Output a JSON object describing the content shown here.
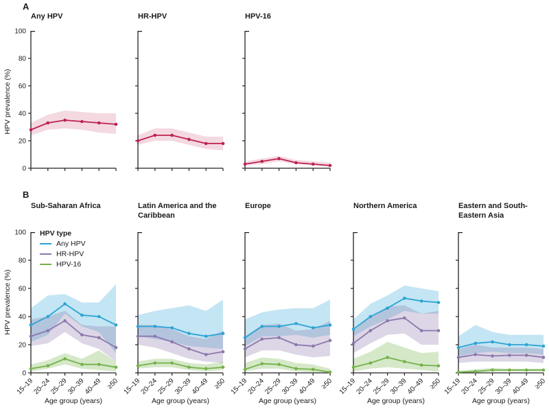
{
  "figure": {
    "panel_a_label": "A",
    "panel_b_label": "B",
    "y_axis_label": "HPV prevalence (%)",
    "x_axis_label": "Age group (years)",
    "legend_title": "HPV type"
  },
  "colors": {
    "pooled_line": "#BE2050",
    "pooled_band": "rgba(190,32,80,0.17)",
    "any_hpv_line": "#2BA3D4",
    "any_hpv_band": "rgba(43,163,212,0.28)",
    "hr_hpv_line": "#8C77AC",
    "hr_hpv_band": "rgba(140,119,172,0.30)",
    "hpv16_line": "#73B249",
    "hpv16_band": "rgba(115,178,73,0.30)",
    "axis": "#231f20"
  },
  "chart_data": [
    {
      "panel": "A",
      "type": "line",
      "categories": [
        "15–19",
        "20–24",
        "25–29",
        "30–39",
        "40–49",
        "≥50"
      ],
      "x_tick_labels_shown": false,
      "xlabel": "",
      "ylabel": "HPV prevalence (%)",
      "ylim": [
        0,
        100
      ],
      "yticks": [
        0,
        20,
        40,
        60,
        80,
        100
      ],
      "grid": false,
      "subplots": [
        {
          "title": "Any HPV",
          "series": [
            {
              "name": "Any HPV pooled",
              "color_key": "pooled",
              "values": [
                28,
                33,
                35,
                34,
                33,
                32
              ],
              "ci_lower": [
                24,
                28,
                29,
                28,
                26,
                25
              ],
              "ci_upper": [
                33,
                39,
                42,
                41,
                40,
                40
              ]
            }
          ]
        },
        {
          "title": "HR-HPV",
          "series": [
            {
              "name": "HR-HPV pooled",
              "color_key": "pooled",
              "values": [
                20,
                24,
                24,
                21,
                18,
                18
              ],
              "ci_lower": [
                17,
                20,
                20,
                17,
                14,
                13
              ],
              "ci_upper": [
                24,
                29,
                29,
                26,
                23,
                23
              ]
            }
          ]
        },
        {
          "title": "HPV-16",
          "series": [
            {
              "name": "HPV-16 pooled",
              "color_key": "pooled",
              "values": [
                3,
                5,
                7,
                4,
                3,
                2
              ],
              "ci_lower": [
                2,
                3,
                5,
                3,
                2,
                1
              ],
              "ci_upper": [
                5,
                7,
                9,
                6,
                5,
                4
              ]
            }
          ]
        }
      ]
    },
    {
      "panel": "B",
      "type": "line",
      "categories": [
        "15–19",
        "20–24",
        "25–29",
        "30–39",
        "40–49",
        "≥50"
      ],
      "x_tick_labels_shown": true,
      "xlabel": "Age group (years)",
      "ylabel": "HPV prevalence (%)",
      "ylim": [
        0,
        100
      ],
      "yticks": [
        0,
        20,
        40,
        60,
        80,
        100
      ],
      "grid": false,
      "legend": {
        "title": "HPV type",
        "position": "top-left-first-subplot",
        "entries": [
          {
            "label": "Any HPV",
            "color_key": "any_hpv"
          },
          {
            "label": "HR-HPV",
            "color_key": "hr_hpv"
          },
          {
            "label": "HPV-16",
            "color_key": "hpv16"
          }
        ]
      },
      "subplots": [
        {
          "title": "Sub-Saharan Africa",
          "series": [
            {
              "name": "Any HPV",
              "color_key": "any_hpv",
              "values": [
                34,
                40,
                49,
                41,
                40,
                34
              ],
              "ci_lower": [
                22,
                27,
                42,
                33,
                29,
                14
              ],
              "ci_upper": [
                46,
                55,
                56,
                50,
                50,
                63
              ]
            },
            {
              "name": "HR-HPV",
              "color_key": "hr_hpv",
              "values": [
                26,
                30,
                37,
                27,
                25,
                18
              ],
              "ci_lower": [
                19,
                21,
                29,
                21,
                17,
                8
              ],
              "ci_upper": [
                38,
                40,
                44,
                34,
                33,
                33
              ]
            },
            {
              "name": "HPV-16",
              "color_key": "hpv16",
              "values": [
                3,
                5,
                10,
                6,
                6,
                4
              ],
              "ci_lower": [
                1,
                3,
                6,
                3,
                2,
                1
              ],
              "ci_upper": [
                6,
                9,
                14,
                10,
                16,
                8
              ]
            }
          ]
        },
        {
          "title": "Latin America and the Caribbean",
          "series": [
            {
              "name": "Any HPV",
              "color_key": "any_hpv",
              "values": [
                33,
                33,
                32,
                28,
                26,
                28
              ],
              "ci_lower": [
                26,
                24,
                22,
                19,
                18,
                17
              ],
              "ci_upper": [
                41,
                44,
                46,
                48,
                44,
                52
              ]
            },
            {
              "name": "HR-HPV",
              "color_key": "hr_hpv",
              "values": [
                26,
                26,
                22,
                17,
                13,
                15
              ],
              "ci_lower": [
                20,
                18,
                14,
                10,
                8,
                7
              ],
              "ci_upper": [
                34,
                34,
                31,
                26,
                24,
                30
              ]
            },
            {
              "name": "HPV-16",
              "color_key": "hpv16",
              "values": [
                5,
                7,
                7,
                4,
                3,
                4
              ],
              "ci_lower": [
                3,
                4,
                4,
                2,
                1,
                2
              ],
              "ci_upper": [
                8,
                10,
                10,
                7,
                6,
                8
              ]
            }
          ]
        },
        {
          "title": "Europe",
          "series": [
            {
              "name": "Any HPV",
              "color_key": "any_hpv",
              "values": [
                25,
                33,
                33,
                35,
                32,
                34
              ],
              "ci_lower": [
                19,
                26,
                26,
                27,
                25,
                27
              ],
              "ci_upper": [
                38,
                43,
                45,
                46,
                46,
                52
              ]
            },
            {
              "name": "HR-HPV",
              "color_key": "hr_hpv",
              "values": [
                17,
                24,
                25,
                20,
                19,
                23
              ],
              "ci_lower": [
                11,
                16,
                16,
                13,
                11,
                12
              ],
              "ci_upper": [
                26,
                34,
                35,
                30,
                31,
                37
              ]
            },
            {
              "name": "HPV-16",
              "color_key": "hpv16",
              "values": [
                2.5,
                6.5,
                6,
                3,
                2.5,
                0.5
              ],
              "ci_lower": [
                1,
                3,
                3,
                1,
                0.5,
                0
              ],
              "ci_upper": [
                7,
                11,
                10,
                7,
                6,
                3
              ]
            }
          ]
        },
        {
          "title": "Northern America",
          "series": [
            {
              "name": "Any HPV",
              "color_key": "any_hpv",
              "values": [
                31,
                40,
                46,
                53,
                51,
                50
              ],
              "ci_lower": [
                26,
                33,
                38,
                44,
                42,
                42
              ],
              "ci_upper": [
                38,
                49,
                55,
                62,
                60,
                58
              ]
            },
            {
              "name": "HR-HPV",
              "color_key": "hr_hpv",
              "values": [
                21,
                30,
                37,
                39,
                30,
                30
              ],
              "ci_lower": [
                14,
                21,
                27,
                28,
                20,
                20
              ],
              "ci_upper": [
                30,
                40,
                47,
                48,
                42,
                44
              ]
            },
            {
              "name": "HPV-16",
              "color_key": "hpv16",
              "values": [
                4,
                7,
                11,
                8,
                5.5,
                5
              ],
              "ci_lower": [
                1,
                3,
                4,
                3,
                2,
                1
              ],
              "ci_upper": [
                10,
                15,
                22,
                18,
                14,
                15
              ]
            }
          ]
        },
        {
          "title": "Eastern and South-Eastern Asia",
          "series": [
            {
              "name": "Any HPV",
              "color_key": "any_hpv",
              "values": [
                18,
                21,
                22,
                20,
                20,
                19
              ],
              "ci_lower": [
                12,
                14,
                15,
                14,
                14,
                13
              ],
              "ci_upper": [
                26,
                34,
                29,
                27,
                27,
                27
              ]
            },
            {
              "name": "HR-HPV",
              "color_key": "hr_hpv",
              "values": [
                11,
                13,
                12,
                12.5,
                12.5,
                11
              ],
              "ci_lower": [
                7,
                8,
                8,
                8,
                8,
                7
              ],
              "ci_upper": [
                17,
                20,
                18,
                18,
                18,
                17
              ]
            },
            {
              "name": "HPV-16",
              "color_key": "hpv16",
              "values": [
                0.5,
                1,
                2,
                2,
                2,
                2
              ],
              "ci_lower": [
                0,
                0,
                1,
                1,
                1,
                1
              ],
              "ci_upper": [
                1.5,
                2.5,
                3.5,
                3,
                3,
                3
              ]
            }
          ]
        }
      ]
    }
  ]
}
